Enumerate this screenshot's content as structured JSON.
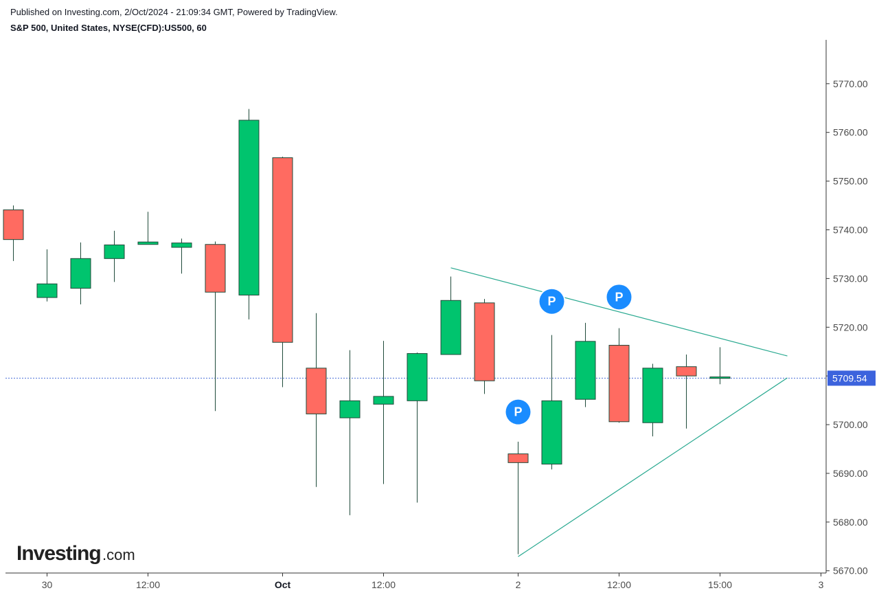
{
  "header": {
    "published": "Published on Investing.com, 2/Oct/2024 - 21:09:34 GMT, Powered by TradingView.",
    "symbol": "S&P 500, United States, NYSE(CFD):US500, 60"
  },
  "logo": {
    "main": "Investing",
    "suffix": ".com"
  },
  "colors": {
    "up": "#00c46e",
    "down": "#ff6b61",
    "wick": "#1f4a3a",
    "trendline": "#27a88f",
    "price_line": "#4a6fd8",
    "price_tag": "#3c63dd",
    "marker": "#1a8cff"
  },
  "chart_data": {
    "type": "candlestick",
    "y_range": [
      5667,
      5779
    ],
    "y_ticks": [
      "5770.00",
      "5760.00",
      "5750.00",
      "5740.00",
      "5730.00",
      "5720.00",
      "5710.00",
      "5700.00",
      "5690.00",
      "5680.00",
      "5670.00"
    ],
    "x_labels": [
      {
        "text": "30",
        "bar": 1,
        "bold": false
      },
      {
        "text": "12:00",
        "bar": 4,
        "bold": false
      },
      {
        "text": "Oct",
        "bar": 8,
        "bold": true
      },
      {
        "text": "12:00",
        "bar": 11,
        "bold": false
      },
      {
        "text": "2",
        "bar": 15,
        "bold": false
      },
      {
        "text": "12:00",
        "bar": 18,
        "bold": false
      },
      {
        "text": "15:00",
        "bar": 21,
        "bold": false
      },
      {
        "text": "3",
        "bar": 24,
        "bold": false
      }
    ],
    "last_price": 5709.54,
    "last_price_label": "5709.54",
    "candles": [
      {
        "o": 5744.1,
        "h": 5745.0,
        "l": 5733.6,
        "c": 5738.0
      },
      {
        "o": 5726.1,
        "h": 5736.0,
        "l": 5725.3,
        "c": 5728.9
      },
      {
        "o": 5728.0,
        "h": 5737.4,
        "l": 5724.7,
        "c": 5734.1
      },
      {
        "o": 5734.1,
        "h": 5739.8,
        "l": 5729.3,
        "c": 5736.9
      },
      {
        "o": 5737.0,
        "h": 5743.7,
        "l": 5737.0,
        "c": 5737.5
      },
      {
        "o": 5736.4,
        "h": 5738.2,
        "l": 5731.0,
        "c": 5737.3
      },
      {
        "o": 5737.0,
        "h": 5737.6,
        "l": 5702.8,
        "c": 5727.2
      },
      {
        "o": 5726.6,
        "h": 5764.8,
        "l": 5721.6,
        "c": 5762.5
      },
      {
        "o": 5754.8,
        "h": 5755.0,
        "l": 5707.7,
        "c": 5716.9
      },
      {
        "o": 5711.6,
        "h": 5722.9,
        "l": 5687.2,
        "c": 5702.2
      },
      {
        "o": 5701.4,
        "h": 5715.3,
        "l": 5681.4,
        "c": 5704.9
      },
      {
        "o": 5704.2,
        "h": 5717.2,
        "l": 5687.8,
        "c": 5705.8
      },
      {
        "o": 5704.9,
        "h": 5714.8,
        "l": 5684.0,
        "c": 5714.6
      },
      {
        "o": 5714.4,
        "h": 5730.4,
        "l": 5714.4,
        "c": 5725.5
      },
      {
        "o": 5725.0,
        "h": 5725.8,
        "l": 5706.3,
        "c": 5709.0
      },
      {
        "o": 5694.0,
        "h": 5696.5,
        "l": 5673.4,
        "c": 5692.2
      },
      {
        "o": 5691.9,
        "h": 5718.4,
        "l": 5690.8,
        "c": 5704.9
      },
      {
        "o": 5705.2,
        "h": 5720.9,
        "l": 5703.6,
        "c": 5717.1
      },
      {
        "o": 5716.3,
        "h": 5719.8,
        "l": 5700.4,
        "c": 5700.6
      },
      {
        "o": 5700.4,
        "h": 5712.5,
        "l": 5697.6,
        "c": 5711.6
      },
      {
        "o": 5711.9,
        "h": 5714.4,
        "l": 5699.2,
        "c": 5710.0
      },
      {
        "o": 5709.5,
        "h": 5715.9,
        "l": 5708.3,
        "c": 5709.8
      }
    ],
    "trendlines": [
      {
        "name": "upper",
        "from": {
          "bar": 13,
          "price": 5732.2
        },
        "to": {
          "bar": 23,
          "price": 5714.1
        }
      },
      {
        "name": "lower",
        "from": {
          "bar": 15,
          "price": 5672.9
        },
        "to": {
          "bar": 23,
          "price": 5709.6
        }
      }
    ],
    "markers": [
      {
        "label": "P",
        "bar": 15,
        "price": 5702.6
      },
      {
        "label": "P",
        "bar": 16,
        "price": 5725.3
      },
      {
        "label": "P",
        "bar": 18,
        "price": 5726.2
      }
    ]
  }
}
